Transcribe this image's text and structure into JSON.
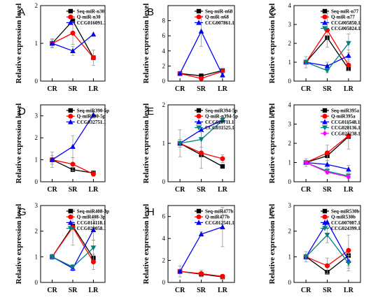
{
  "figure": {
    "panels": [
      "A",
      "B",
      "C",
      "D",
      "E",
      "F",
      "G",
      "H",
      "I"
    ]
  },
  "chart_data": [
    {
      "panel": "A",
      "type": "line",
      "categories": [
        "CR",
        "SR",
        "LR"
      ],
      "ylabel": "Relative expression level",
      "ylim": [
        0,
        2
      ],
      "yticks": [
        0,
        1,
        2
      ],
      "series": [
        {
          "name": "Seq-miR-n30",
          "color": "#000000",
          "marker": "square",
          "values": [
            1.0,
            1.6,
            0.62
          ],
          "errors": [
            0.0,
            0.0,
            0.0
          ]
        },
        {
          "name": "Q-miR-n30",
          "color": "#ff0000",
          "marker": "circle",
          "values": [
            1.0,
            1.27,
            0.62
          ],
          "errors": [
            0.12,
            0.3,
            0.2
          ]
        },
        {
          "name": "CCG016091.1",
          "color": "#0000ff",
          "marker": "triangle",
          "values": [
            1.0,
            0.8,
            1.24
          ],
          "errors": [
            0.1,
            0.12,
            0.0
          ]
        }
      ]
    },
    {
      "panel": "B",
      "type": "line",
      "categories": [
        "CR",
        "SR",
        "LR"
      ],
      "ylabel": "Relative expression level",
      "ylim": [
        0,
        10
      ],
      "yticks": [
        0,
        2,
        4,
        6,
        8
      ],
      "series": [
        {
          "name": "Seq-miR-n68",
          "color": "#000000",
          "marker": "square",
          "values": [
            1.0,
            0.7,
            1.4
          ],
          "errors": [
            0.0,
            0.0,
            0.0
          ]
        },
        {
          "name": "Q-miR-n68",
          "color": "#ff0000",
          "marker": "circle",
          "values": [
            1.0,
            0.35,
            1.3
          ],
          "errors": [
            0.15,
            0.2,
            0.3
          ]
        },
        {
          "name": "CCG007861.1",
          "color": "#0000ff",
          "marker": "triangle",
          "values": [
            1.0,
            6.6,
            0.8
          ],
          "errors": [
            0.2,
            2.0,
            0.3
          ]
        }
      ]
    },
    {
      "panel": "C",
      "type": "line",
      "categories": [
        "CR",
        "SR",
        "LR"
      ],
      "ylabel": "Relative expression level",
      "ylim": [
        0,
        4
      ],
      "yticks": [
        0,
        1,
        2,
        3,
        4
      ],
      "series": [
        {
          "name": "Seq-miR-n77",
          "color": "#000000",
          "marker": "square",
          "values": [
            1.0,
            2.3,
            0.65
          ],
          "errors": [
            0.0,
            0.0,
            0.0
          ]
        },
        {
          "name": "Q-miR-n77",
          "color": "#ff0000",
          "marker": "circle",
          "values": [
            1.0,
            2.7,
            0.85
          ],
          "errors": [
            0.3,
            0.9,
            0.3
          ]
        },
        {
          "name": "CCG005850.1",
          "color": "#0000ff",
          "marker": "triangle",
          "values": [
            1.0,
            0.8,
            1.35
          ],
          "errors": [
            0.1,
            0.2,
            0.3
          ]
        },
        {
          "name": "CCG005824.1",
          "color": "#008080",
          "marker": "triangle-down",
          "values": [
            1.0,
            0.55,
            2.0
          ],
          "errors": [
            0.1,
            0.1,
            0.5
          ]
        }
      ]
    },
    {
      "panel": "D",
      "type": "line",
      "categories": [
        "CR",
        "SR",
        "LR"
      ],
      "ylabel": "Relative expression level",
      "ylim": [
        0,
        3.5
      ],
      "yticks": [
        0,
        1,
        2,
        3
      ],
      "series": [
        {
          "name": "Seq-miR390-5p",
          "color": "#000000",
          "marker": "square",
          "values": [
            1.0,
            0.55,
            0.4
          ],
          "errors": [
            0.0,
            0.0,
            0.0
          ]
        },
        {
          "name": "Q-miR390-5p",
          "color": "#ff0000",
          "marker": "circle",
          "values": [
            1.0,
            0.8,
            0.35
          ],
          "errors": [
            0.35,
            0.3,
            0.1
          ]
        },
        {
          "name": "CCG032751.1",
          "color": "#0000ff",
          "marker": "triangle",
          "values": [
            1.0,
            1.6,
            3.05
          ],
          "errors": [
            0.2,
            0.5,
            0.15
          ]
        }
      ]
    },
    {
      "panel": "E",
      "type": "line",
      "categories": [
        "CR",
        "SR",
        "LR"
      ],
      "ylabel": "Relative expression level",
      "ylim": [
        0,
        2
      ],
      "yticks": [
        0,
        1,
        2
      ],
      "series": [
        {
          "name": "Seq-miR394-5p",
          "color": "#000000",
          "marker": "square",
          "values": [
            1.0,
            0.7,
            0.4
          ],
          "errors": [
            0.0,
            0.0,
            0.0
          ]
        },
        {
          "name": "Q-miR-n394-5p",
          "color": "#ff0000",
          "marker": "circle",
          "values": [
            1.0,
            0.75,
            0.6
          ],
          "errors": [
            0.35,
            0.4,
            0.1
          ]
        },
        {
          "name": "CCG020711.1",
          "color": "#0000ff",
          "marker": "triangle",
          "values": [
            1.0,
            1.35,
            1.6
          ],
          "errors": [
            0.1,
            0.2,
            0.05
          ]
        },
        {
          "name": "CCG031525.1",
          "color": "#008080",
          "marker": "triangle-down",
          "values": [
            1.0,
            1.1,
            1.6
          ],
          "errors": [
            0.1,
            0.2,
            0.05
          ]
        }
      ]
    },
    {
      "panel": "F",
      "type": "line",
      "categories": [
        "CR",
        "SR",
        "LR"
      ],
      "ylabel": "Relative expression level",
      "ylim": [
        0,
        4
      ],
      "yticks": [
        0,
        1,
        2,
        3,
        4
      ],
      "series": [
        {
          "name": "Seq-miR395a",
          "color": "#000000",
          "marker": "square",
          "values": [
            1.0,
            1.35,
            2.35
          ],
          "errors": [
            0.0,
            0.0,
            0.0
          ]
        },
        {
          "name": "Q-miR395a",
          "color": "#ff0000",
          "marker": "circle",
          "values": [
            1.0,
            1.5,
            2.4
          ],
          "errors": [
            0.2,
            0.4,
            0.7
          ]
        },
        {
          "name": "CCG011548.1",
          "color": "#0000ff",
          "marker": "triangle",
          "values": [
            1.0,
            0.9,
            0.65
          ],
          "errors": [
            0.1,
            0.2,
            0.2
          ]
        },
        {
          "name": "CCG020136.1",
          "color": "#008080",
          "marker": "triangle-down",
          "values": [
            1.0,
            0.55,
            0.3
          ],
          "errors": [
            0.1,
            0.1,
            0.1
          ]
        },
        {
          "name": "CCG023238.1",
          "color": "#ff00ff",
          "marker": "diamond",
          "values": [
            1.0,
            0.5,
            0.25
          ],
          "errors": [
            0.1,
            0.1,
            0.1
          ]
        }
      ]
    },
    {
      "panel": "G",
      "type": "line",
      "categories": [
        "CR",
        "SR",
        "LR"
      ],
      "ylabel": "Relative expression level",
      "ylim": [
        0,
        3
      ],
      "yticks": [
        0,
        1,
        2,
        3
      ],
      "series": [
        {
          "name": "Seq-miR408-3p",
          "color": "#000000",
          "marker": "square",
          "values": [
            1.0,
            2.2,
            0.95
          ],
          "errors": [
            0.0,
            0.0,
            0.0
          ]
        },
        {
          "name": "Q-miR408-3p",
          "color": "#ff0000",
          "marker": "circle",
          "values": [
            1.0,
            2.15,
            0.8
          ],
          "errors": [
            0.1,
            0.7,
            0.3
          ]
        },
        {
          "name": "CCG014118.1",
          "color": "#0000ff",
          "marker": "triangle",
          "values": [
            1.0,
            0.55,
            2.05
          ],
          "errors": [
            0.05,
            0.1,
            0.4
          ]
        },
        {
          "name": "CCG020058.1",
          "color": "#008080",
          "marker": "triangle-down",
          "values": [
            1.0,
            0.6,
            1.35
          ],
          "errors": [
            0.05,
            0.1,
            0.3
          ]
        }
      ]
    },
    {
      "panel": "H",
      "type": "line",
      "categories": [
        "CR",
        "SR",
        "LR"
      ],
      "ylabel": "Relative expression level",
      "ylim": [
        0,
        7
      ],
      "yticks": [
        0,
        2,
        4,
        6
      ],
      "series": [
        {
          "name": "Seq-miR477b",
          "color": "#000000",
          "marker": "square",
          "values": [
            1.0,
            0.75,
            0.5
          ],
          "errors": [
            0.0,
            0.0,
            0.0
          ]
        },
        {
          "name": "Q-miR477b",
          "color": "#ff0000",
          "marker": "circle",
          "values": [
            1.0,
            0.8,
            0.55
          ],
          "errors": [
            0.5,
            0.3,
            0.2
          ]
        },
        {
          "name": "CCG012541.1",
          "color": "#0000ff",
          "marker": "triangle",
          "values": [
            1.0,
            4.4,
            5.05
          ],
          "errors": [
            0.2,
            0.2,
            1.8
          ]
        }
      ]
    },
    {
      "panel": "I",
      "type": "line",
      "categories": [
        "CR",
        "SR",
        "LR"
      ],
      "ylabel": "Relative expression level",
      "ylim": [
        0,
        3
      ],
      "yticks": [
        0,
        1,
        2,
        3
      ],
      "series": [
        {
          "name": "Seq-miR530b",
          "color": "#000000",
          "marker": "square",
          "values": [
            1.0,
            0.4,
            1.05
          ],
          "errors": [
            0.0,
            0.0,
            0.0
          ]
        },
        {
          "name": "Q-miR530b",
          "color": "#ff0000",
          "marker": "circle",
          "values": [
            1.0,
            0.65,
            1.25
          ],
          "errors": [
            0.2,
            0.3,
            0.6
          ]
        },
        {
          "name": "CCG007007.1",
          "color": "#0000ff",
          "marker": "triangle",
          "values": [
            1.0,
            2.35,
            0.85
          ],
          "errors": [
            0.1,
            0.2,
            0.3
          ]
        },
        {
          "name": "CCG024399.1",
          "color": "#008080",
          "marker": "triangle-down",
          "values": [
            1.0,
            1.85,
            0.75
          ],
          "errors": [
            0.1,
            0.3,
            0.3
          ]
        }
      ]
    }
  ]
}
